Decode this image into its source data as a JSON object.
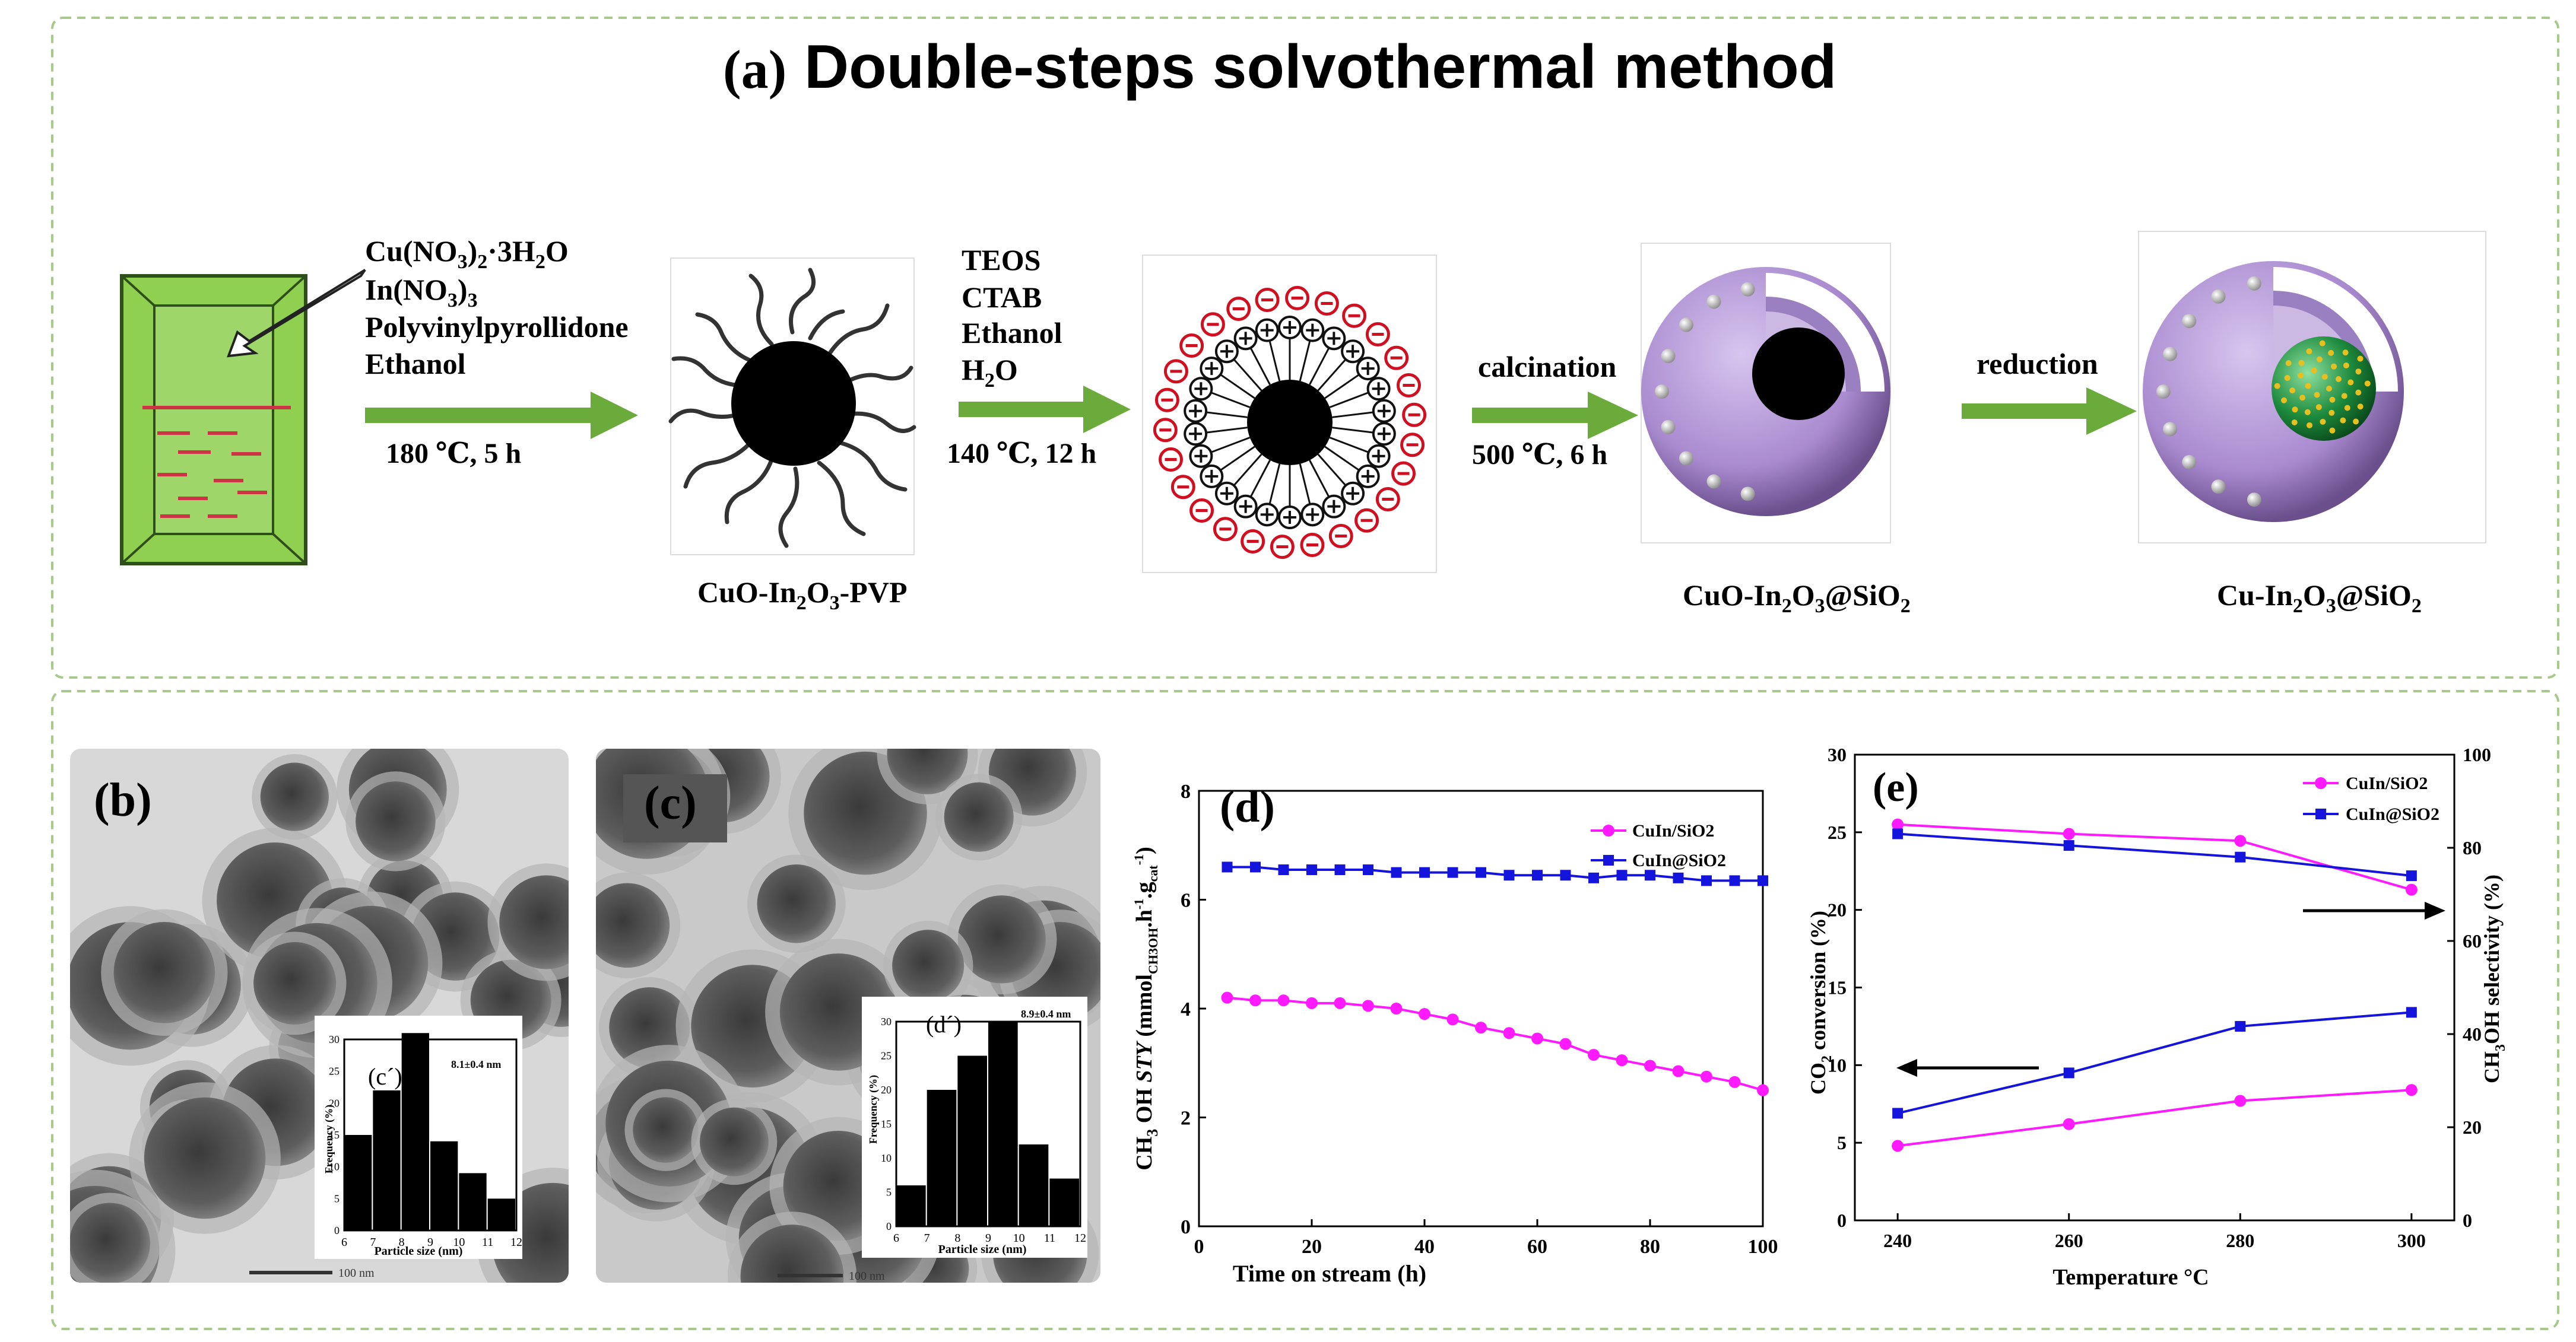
{
  "panel_a": {
    "label": "(a)",
    "title": "Double-steps solvothermal method",
    "reagents1": [
      "Cu(NO3)2·3H2O",
      "In(NO3)3",
      "Polyvinylpyrollidone",
      "Ethanol"
    ],
    "step1_condition": "180 ℃, 5 h",
    "intermediate1": "CuO-In2O3-PVP",
    "reagents2": [
      "TEOS",
      "CTAB",
      "Ethanol",
      "H2O"
    ],
    "step2_condition": "140 ℃, 12 h",
    "step3_label": "calcination",
    "step3_condition": "500 ℃, 6 h",
    "intermediate3": "CuO-In2O3@SiO2",
    "step4_label": "reduction",
    "product": "Cu-In2O3@SiO2"
  },
  "panel_b": {
    "label": "(b)",
    "inset_label": "(c´)",
    "inset_stat": "8.1±0.4 nm",
    "inset_xlabel": "Particle size (nm)",
    "inset_ylabel": "Frequency (%)",
    "scale_bar": "100 nm",
    "histogram": {
      "categories": [
        6,
        7,
        8,
        9,
        10,
        11,
        12
      ],
      "bars": [
        {
          "x": 7,
          "v": 15
        },
        {
          "x": 8,
          "v": 22
        },
        {
          "x": 9,
          "v": 31
        },
        {
          "x": 10,
          "v": 14
        },
        {
          "x": 11,
          "v": 9
        },
        {
          "x": 12,
          "v": 5
        }
      ],
      "ylim": [
        0,
        30
      ]
    }
  },
  "panel_c": {
    "label": "(c)",
    "inset_label": "(d´)",
    "inset_stat": "8.9±0.4 nm",
    "inset_xlabel": "Particle size (nm)",
    "inset_ylabel": "Frequency (%)",
    "scale_bar": "100 nm",
    "histogram": {
      "categories": [
        6,
        7,
        8,
        9,
        10,
        11,
        12
      ],
      "bars": [
        {
          "x": 7,
          "v": 6
        },
        {
          "x": 8,
          "v": 20
        },
        {
          "x": 9,
          "v": 25
        },
        {
          "x": 10,
          "v": 30
        },
        {
          "x": 11,
          "v": 12
        },
        {
          "x": 12,
          "v": 7
        }
      ],
      "ylim": [
        0,
        30
      ]
    }
  },
  "chart_data": [
    {
      "type": "line",
      "label": "(d)",
      "xlabel": "Time on stream (h)",
      "ylabel": "CH3OH STY (mmolCH3OH.h-1.gcat-1)",
      "xlim": [
        0,
        100
      ],
      "ylim": [
        0,
        8
      ],
      "xticks": [
        0,
        20,
        40,
        60,
        80,
        100
      ],
      "yticks": [
        0,
        2,
        4,
        6,
        8
      ],
      "legend_position": "top-right",
      "series": [
        {
          "name": "CuIn/SiO2",
          "color": "#ff1aff",
          "marker": "circle",
          "x": [
            5,
            10,
            15,
            20,
            25,
            30,
            35,
            40,
            45,
            50,
            55,
            60,
            65,
            70,
            75,
            80,
            85,
            90,
            95,
            100
          ],
          "y": [
            4.2,
            4.15,
            4.15,
            4.1,
            4.1,
            4.05,
            4.0,
            3.9,
            3.8,
            3.65,
            3.55,
            3.45,
            3.35,
            3.15,
            3.05,
            2.95,
            2.85,
            2.75,
            2.65,
            2.5
          ]
        },
        {
          "name": "CuIn@SiO2",
          "color": "#1414dc",
          "marker": "square",
          "x": [
            5,
            10,
            15,
            20,
            25,
            30,
            35,
            40,
            45,
            50,
            55,
            60,
            65,
            70,
            75,
            80,
            85,
            90,
            95,
            100
          ],
          "y": [
            6.6,
            6.6,
            6.55,
            6.55,
            6.55,
            6.55,
            6.5,
            6.5,
            6.5,
            6.5,
            6.45,
            6.45,
            6.45,
            6.4,
            6.45,
            6.45,
            6.4,
            6.35,
            6.35,
            6.35
          ]
        }
      ]
    },
    {
      "type": "line",
      "label": "(e)",
      "xlabel": "Temperature °C",
      "ylabel_left": "CO2 conversion (%)",
      "ylabel_right": "CH3OH selectivity (%)",
      "xlim": [
        235,
        305
      ],
      "ylim_left": [
        0,
        30
      ],
      "ylim_right": [
        0,
        100
      ],
      "xticks": [
        240,
        260,
        280,
        300
      ],
      "yticks_left": [
        0,
        5,
        10,
        15,
        20,
        25
      ],
      "top_tick_label": "30",
      "yticks_right": [
        0,
        20,
        40,
        60,
        80,
        100
      ],
      "legend_position": "top-right",
      "series": [
        {
          "name": "CuIn/SiO2 conversion",
          "axis": "left",
          "color": "#ff1aff",
          "marker": "circle",
          "x": [
            240,
            260,
            280,
            300
          ],
          "y": [
            4.8,
            6.2,
            7.7,
            8.4
          ]
        },
        {
          "name": "CuIn@SiO2 conversion",
          "axis": "left",
          "color": "#1414dc",
          "marker": "square",
          "x": [
            240,
            260,
            280,
            300
          ],
          "y": [
            6.9,
            9.5,
            12.5,
            13.4
          ]
        },
        {
          "name": "CuIn/SiO2 selectivity",
          "axis": "right",
          "color": "#ff1aff",
          "marker": "circle",
          "x": [
            240,
            260,
            280,
            300
          ],
          "y": [
            85,
            83,
            81.5,
            71
          ]
        },
        {
          "name": "CuIn@SiO2 selectivity",
          "axis": "right",
          "color": "#1414dc",
          "marker": "square",
          "x": [
            240,
            260,
            280,
            300
          ],
          "y": [
            83,
            80.5,
            78,
            74
          ]
        }
      ],
      "legend": [
        "CuIn/SiO2",
        "CuIn@SiO2"
      ]
    }
  ],
  "colors": {
    "arrow_green": "#6aab3c",
    "beaker_green": "#8fd051",
    "shell_purple": "#b49bd6",
    "frame_dash": "#a9c98b"
  }
}
